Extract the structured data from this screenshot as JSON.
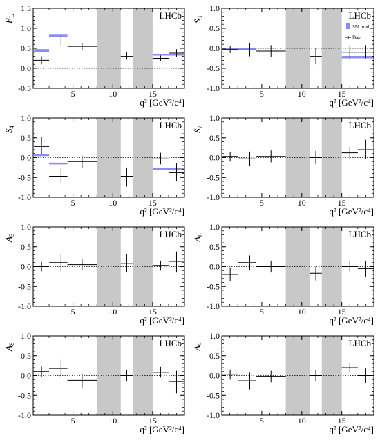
{
  "colors": {
    "prediction": "#8c8cf0",
    "veto": "#c8c8c8",
    "data": "#000000"
  },
  "chart_data": [
    {
      "type": "errorbar",
      "name": "FL",
      "ylabel_main": "F",
      "ylabel_sub": "L",
      "xlabel": "q² [GeV²/c⁴]",
      "experiment_label": "LHCb",
      "xlim": [
        0,
        19
      ],
      "ylim": [
        -0.5,
        1.5
      ],
      "yticks": [
        "-0.5",
        "0.0",
        "0.5",
        "1.0",
        "1.5"
      ],
      "xticks": [
        "5",
        "10",
        "15"
      ],
      "veto_regions": [
        [
          8.0,
          11.0
        ],
        [
          12.5,
          15.0
        ]
      ],
      "data": [
        {
          "x": 1.05,
          "xlo": 0.1,
          "xhi": 2.0,
          "y": 0.2,
          "ylo": 0.1,
          "yhi": 0.3
        },
        {
          "x": 3.5,
          "xlo": 2.0,
          "xhi": 4.3,
          "y": 0.68,
          "ylo": 0.58,
          "yhi": 0.8
        },
        {
          "x": 6.15,
          "xlo": 4.3,
          "xhi": 8.0,
          "y": 0.55,
          "ylo": 0.46,
          "yhi": 0.63
        },
        {
          "x": 11.75,
          "xlo": 11.0,
          "xhi": 12.5,
          "y": 0.3,
          "ylo": 0.22,
          "yhi": 0.4
        },
        {
          "x": 16.0,
          "xlo": 15.0,
          "xhi": 17.0,
          "y": 0.25,
          "ylo": 0.18,
          "yhi": 0.32
        },
        {
          "x": 18.0,
          "xlo": 17.0,
          "xhi": 19.0,
          "y": 0.38,
          "ylo": 0.28,
          "yhi": 0.48
        }
      ],
      "predictions": [
        {
          "xlo": 0.1,
          "xhi": 2.0,
          "ylo": 0.41,
          "yhi": 0.48
        },
        {
          "xlo": 2.0,
          "xhi": 4.3,
          "ylo": 0.79,
          "yhi": 0.84
        },
        {
          "xlo": 15.0,
          "xhi": 19.0,
          "ylo": 0.32,
          "yhi": 0.36
        }
      ]
    },
    {
      "type": "errorbar",
      "name": "S3",
      "ylabel_main": "S",
      "ylabel_sub": "3",
      "xlabel": "q² [GeV²/c⁴]",
      "experiment_label": "LHCb",
      "legend": {
        "prediction": "SM pred.",
        "data": "Data"
      },
      "xlim": [
        0,
        19
      ],
      "ylim": [
        -1.0,
        1.0
      ],
      "yticks": [
        "-1.0",
        "-0.5",
        "0.0",
        "0.5",
        "1.0"
      ],
      "xticks": [
        "5",
        "10",
        "15"
      ],
      "veto_regions": [
        [
          8.0,
          11.0
        ],
        [
          12.5,
          15.0
        ]
      ],
      "data": [
        {
          "x": 1.05,
          "xlo": 0.1,
          "xhi": 2.0,
          "y": -0.03,
          "ylo": -0.12,
          "yhi": 0.06
        },
        {
          "x": 3.5,
          "xlo": 2.0,
          "xhi": 4.3,
          "y": -0.04,
          "ylo": -0.2,
          "yhi": 0.12
        },
        {
          "x": 6.15,
          "xlo": 4.3,
          "xhi": 8.0,
          "y": -0.07,
          "ylo": -0.22,
          "yhi": 0.08
        },
        {
          "x": 11.75,
          "xlo": 11.0,
          "xhi": 12.5,
          "y": -0.2,
          "ylo": -0.4,
          "yhi": 0.02
        },
        {
          "x": 16.0,
          "xlo": 15.0,
          "xhi": 17.0,
          "y": -0.1,
          "ylo": -0.25,
          "yhi": 0.07
        },
        {
          "x": 18.0,
          "xlo": 17.0,
          "xhi": 19.0,
          "y": -0.1,
          "ylo": -0.25,
          "yhi": 0.08
        }
      ],
      "predictions": [
        {
          "xlo": 0.1,
          "xhi": 2.0,
          "ylo": -0.02,
          "yhi": 0.0
        },
        {
          "xlo": 2.0,
          "xhi": 4.3,
          "ylo": -0.03,
          "yhi": -0.01
        },
        {
          "xlo": 15.0,
          "xhi": 19.0,
          "ylo": -0.25,
          "yhi": -0.19
        }
      ]
    },
    {
      "type": "errorbar",
      "name": "S4",
      "ylabel_main": "S",
      "ylabel_sub": "4",
      "xlabel": "q² [GeV²/c⁴]",
      "experiment_label": "LHCb",
      "xlim": [
        0,
        19
      ],
      "ylim": [
        -1.0,
        1.0
      ],
      "yticks": [
        "-1.0",
        "-0.5",
        "0.0",
        "0.5",
        "1.0"
      ],
      "xticks": [
        "5",
        "10",
        "15"
      ],
      "veto_regions": [
        [
          8.0,
          11.0
        ],
        [
          12.5,
          15.0
        ]
      ],
      "data": [
        {
          "x": 1.05,
          "xlo": 0.1,
          "xhi": 2.0,
          "y": 0.28,
          "ylo": 0.08,
          "yhi": 0.52
        },
        {
          "x": 3.5,
          "xlo": 2.0,
          "xhi": 4.3,
          "y": -0.47,
          "ylo": -0.65,
          "yhi": -0.25
        },
        {
          "x": 6.15,
          "xlo": 4.3,
          "xhi": 8.0,
          "y": -0.1,
          "ylo": -0.25,
          "yhi": 0.05
        },
        {
          "x": 11.75,
          "xlo": 11.0,
          "xhi": 12.5,
          "y": -0.47,
          "ylo": -0.73,
          "yhi": -0.25
        },
        {
          "x": 16.0,
          "xlo": 15.0,
          "xhi": 17.0,
          "y": -0.03,
          "ylo": -0.17,
          "yhi": 0.12
        },
        {
          "x": 18.0,
          "xlo": 17.0,
          "xhi": 19.0,
          "y": -0.38,
          "ylo": -0.6,
          "yhi": -0.15
        }
      ],
      "predictions": [
        {
          "xlo": 0.1,
          "xhi": 2.0,
          "ylo": 0.05,
          "yhi": 0.07
        },
        {
          "xlo": 2.0,
          "xhi": 4.3,
          "ylo": -0.16,
          "yhi": -0.14
        },
        {
          "xlo": 15.0,
          "xhi": 19.0,
          "ylo": -0.3,
          "yhi": -0.28
        }
      ]
    },
    {
      "type": "errorbar",
      "name": "S7",
      "ylabel_main": "S",
      "ylabel_sub": "7",
      "xlabel": "q² [GeV²/c⁴]",
      "experiment_label": "LHCb",
      "xlim": [
        0,
        19
      ],
      "ylim": [
        -1.0,
        1.0
      ],
      "yticks": [
        "-1.0",
        "-0.5",
        "0.0",
        "0.5",
        "1.0"
      ],
      "xticks": [
        "5",
        "10",
        "15"
      ],
      "veto_regions": [
        [
          8.0,
          11.0
        ],
        [
          12.5,
          15.0
        ]
      ],
      "data": [
        {
          "x": 1.05,
          "xlo": 0.1,
          "xhi": 2.0,
          "y": 0.03,
          "ylo": -0.1,
          "yhi": 0.15
        },
        {
          "x": 3.5,
          "xlo": 2.0,
          "xhi": 4.3,
          "y": -0.03,
          "ylo": -0.2,
          "yhi": 0.15
        },
        {
          "x": 6.15,
          "xlo": 4.3,
          "xhi": 8.0,
          "y": 0.03,
          "ylo": -0.12,
          "yhi": 0.18
        },
        {
          "x": 11.75,
          "xlo": 11.0,
          "xhi": 12.5,
          "y": 0.0,
          "ylo": -0.17,
          "yhi": 0.17
        },
        {
          "x": 16.0,
          "xlo": 15.0,
          "xhi": 17.0,
          "y": 0.12,
          "ylo": -0.02,
          "yhi": 0.27
        },
        {
          "x": 18.0,
          "xlo": 17.0,
          "xhi": 19.0,
          "y": 0.2,
          "ylo": -0.03,
          "yhi": 0.45
        }
      ],
      "predictions": []
    },
    {
      "type": "errorbar",
      "name": "A5",
      "ylabel_main": "A",
      "ylabel_sub": "5",
      "xlabel": "q² [GeV²/c⁴]",
      "experiment_label": "LHCb",
      "xlim": [
        0,
        19
      ],
      "ylim": [
        -1.0,
        1.0
      ],
      "yticks": [
        "-1.0",
        "-0.5",
        "0.0",
        "0.5",
        "1.0"
      ],
      "xticks": [
        "5",
        "10",
        "15"
      ],
      "veto_regions": [
        [
          8.0,
          11.0
        ],
        [
          12.5,
          15.0
        ]
      ],
      "data": [
        {
          "x": 1.05,
          "xlo": 0.1,
          "xhi": 2.0,
          "y": 0.0,
          "ylo": -0.12,
          "yhi": 0.12
        },
        {
          "x": 3.5,
          "xlo": 2.0,
          "xhi": 4.3,
          "y": 0.1,
          "ylo": -0.12,
          "yhi": 0.32
        },
        {
          "x": 6.15,
          "xlo": 4.3,
          "xhi": 8.0,
          "y": 0.05,
          "ylo": -0.1,
          "yhi": 0.2
        },
        {
          "x": 11.75,
          "xlo": 11.0,
          "xhi": 12.5,
          "y": 0.08,
          "ylo": -0.15,
          "yhi": 0.32
        },
        {
          "x": 16.0,
          "xlo": 15.0,
          "xhi": 17.0,
          "y": 0.03,
          "ylo": -0.1,
          "yhi": 0.15
        },
        {
          "x": 18.0,
          "xlo": 17.0,
          "xhi": 19.0,
          "y": 0.13,
          "ylo": -0.15,
          "yhi": 0.38
        }
      ],
      "predictions": []
    },
    {
      "type": "errorbar",
      "name": "A6",
      "ylabel_main": "A",
      "ylabel_sub": "6",
      "xlabel": "q² [GeV²/c⁴]",
      "experiment_label": "LHCb",
      "xlim": [
        0,
        19
      ],
      "ylim": [
        -1.0,
        1.0
      ],
      "yticks": [
        "-1.0",
        "-0.5",
        "0.0",
        "0.5",
        "1.0"
      ],
      "xticks": [
        "5",
        "10",
        "15"
      ],
      "veto_regions": [
        [
          8.0,
          11.0
        ],
        [
          12.5,
          15.0
        ]
      ],
      "data": [
        {
          "x": 1.05,
          "xlo": 0.1,
          "xhi": 2.0,
          "y": -0.2,
          "ylo": -0.37,
          "yhi": -0.02
        },
        {
          "x": 3.5,
          "xlo": 2.0,
          "xhi": 4.3,
          "y": 0.1,
          "ylo": -0.08,
          "yhi": 0.28
        },
        {
          "x": 6.15,
          "xlo": 4.3,
          "xhi": 8.0,
          "y": 0.0,
          "ylo": -0.15,
          "yhi": 0.15
        },
        {
          "x": 11.75,
          "xlo": 11.0,
          "xhi": 12.5,
          "y": -0.17,
          "ylo": -0.35,
          "yhi": 0.0
        },
        {
          "x": 16.0,
          "xlo": 15.0,
          "xhi": 17.0,
          "y": 0.0,
          "ylo": -0.15,
          "yhi": 0.15
        },
        {
          "x": 18.0,
          "xlo": 17.0,
          "xhi": 19.0,
          "y": -0.05,
          "ylo": -0.25,
          "yhi": 0.15
        }
      ],
      "predictions": []
    },
    {
      "type": "errorbar",
      "name": "A8",
      "ylabel_main": "A",
      "ylabel_sub": "8",
      "xlabel": "q² [GeV²/c⁴]",
      "experiment_label": "LHCb",
      "xlim": [
        0,
        19
      ],
      "ylim": [
        -1.0,
        1.0
      ],
      "yticks": [
        "-1.0",
        "-0.5",
        "0.0",
        "0.5",
        "1.0"
      ],
      "xticks": [
        "5",
        "10",
        "15"
      ],
      "veto_regions": [
        [
          8.0,
          11.0
        ],
        [
          12.5,
          15.0
        ]
      ],
      "data": [
        {
          "x": 1.05,
          "xlo": 0.1,
          "xhi": 2.0,
          "y": 0.1,
          "ylo": -0.03,
          "yhi": 0.23
        },
        {
          "x": 3.5,
          "xlo": 2.0,
          "xhi": 4.3,
          "y": 0.18,
          "ylo": -0.05,
          "yhi": 0.4
        },
        {
          "x": 6.15,
          "xlo": 4.3,
          "xhi": 8.0,
          "y": -0.12,
          "ylo": -0.3,
          "yhi": 0.05
        },
        {
          "x": 11.75,
          "xlo": 11.0,
          "xhi": 12.5,
          "y": 0.0,
          "ylo": -0.15,
          "yhi": 0.15
        },
        {
          "x": 16.0,
          "xlo": 15.0,
          "xhi": 17.0,
          "y": 0.08,
          "ylo": -0.05,
          "yhi": 0.22
        },
        {
          "x": 18.0,
          "xlo": 17.0,
          "xhi": 19.0,
          "y": -0.15,
          "ylo": -0.45,
          "yhi": 0.12
        }
      ],
      "predictions": []
    },
    {
      "type": "errorbar",
      "name": "A9",
      "ylabel_main": "A",
      "ylabel_sub": "9",
      "xlabel": "q² [GeV²/c⁴]",
      "experiment_label": "LHCb",
      "xlim": [
        0,
        19
      ],
      "ylim": [
        -1.0,
        1.0
      ],
      "yticks": [
        "-1.0",
        "-0.5",
        "0.0",
        "0.5",
        "1.0"
      ],
      "xticks": [
        "5",
        "10",
        "15"
      ],
      "veto_regions": [
        [
          8.0,
          11.0
        ],
        [
          12.5,
          15.0
        ]
      ],
      "data": [
        {
          "x": 1.05,
          "xlo": 0.1,
          "xhi": 2.0,
          "y": 0.03,
          "ylo": -0.1,
          "yhi": 0.15
        },
        {
          "x": 3.5,
          "xlo": 2.0,
          "xhi": 4.3,
          "y": -0.13,
          "ylo": -0.35,
          "yhi": 0.07
        },
        {
          "x": 6.15,
          "xlo": 4.3,
          "xhi": 8.0,
          "y": -0.02,
          "ylo": -0.17,
          "yhi": 0.12
        },
        {
          "x": 11.75,
          "xlo": 11.0,
          "xhi": 12.5,
          "y": 0.0,
          "ylo": -0.15,
          "yhi": 0.15
        },
        {
          "x": 16.0,
          "xlo": 15.0,
          "xhi": 17.0,
          "y": 0.2,
          "ylo": 0.07,
          "yhi": 0.32
        },
        {
          "x": 18.0,
          "xlo": 17.0,
          "xhi": 19.0,
          "y": 0.0,
          "ylo": -0.2,
          "yhi": 0.18
        }
      ],
      "predictions": []
    }
  ]
}
